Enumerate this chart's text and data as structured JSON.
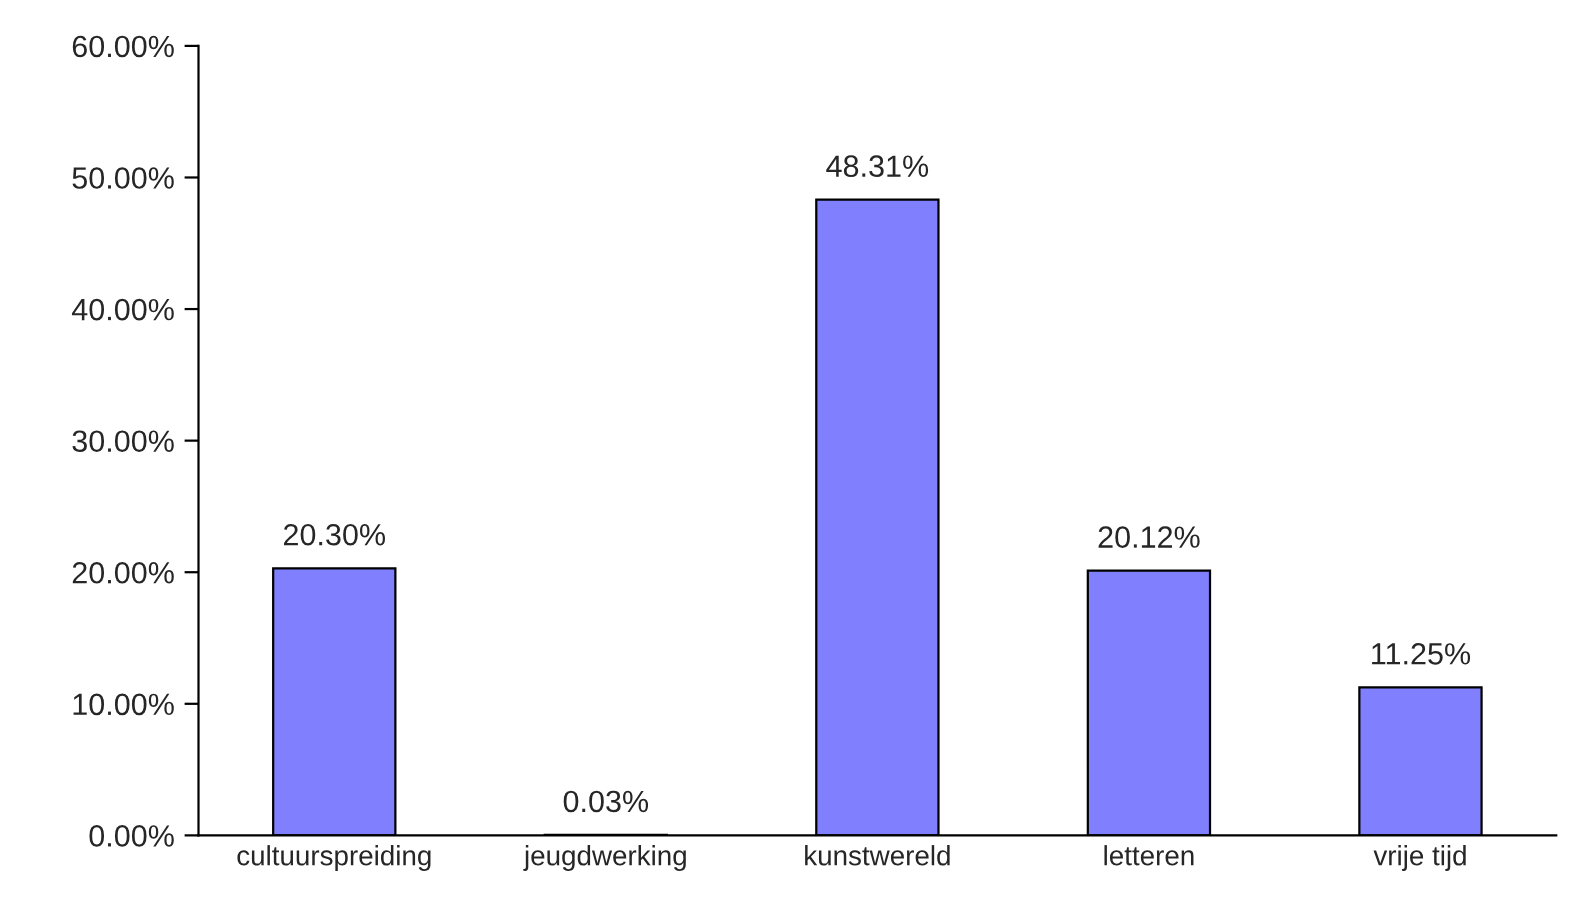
{
  "chart_data": {
    "type": "bar",
    "categories": [
      "cultuurspreiding",
      "jeugdwerking",
      "kunstwereld",
      "letteren",
      "vrije tijd"
    ],
    "values": [
      20.3,
      0.03,
      48.31,
      20.12,
      11.25
    ],
    "value_labels": [
      "20.30%",
      "0.03%",
      "48.31%",
      "20.12%",
      "11.25%"
    ],
    "color": "#8080ff",
    "ylim": [
      0,
      60
    ],
    "yticks": [
      {
        "value": 0,
        "label": "0.00%"
      },
      {
        "value": 10,
        "label": "10.00%"
      },
      {
        "value": 20,
        "label": "20.00%"
      },
      {
        "value": 30,
        "label": "30.00%"
      },
      {
        "value": 40,
        "label": "40.00%"
      },
      {
        "value": 50,
        "label": "50.00%"
      },
      {
        "value": 60,
        "label": "60.00%"
      }
    ],
    "grid": false,
    "legend": false
  }
}
